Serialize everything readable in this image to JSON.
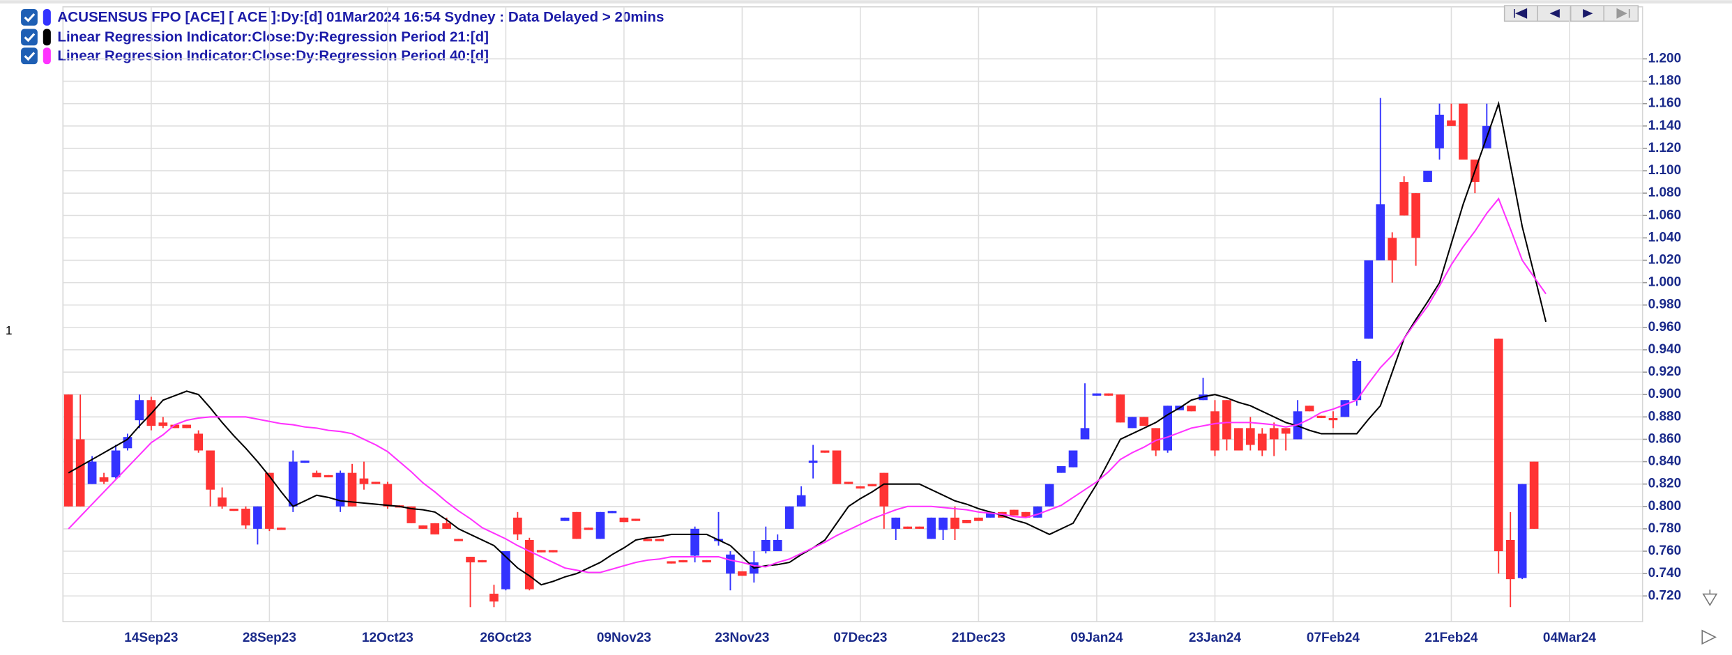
{
  "chart_data": {
    "type": "candlestick",
    "pane_label": "1",
    "ylim": [
      0.697,
      1.2465
    ],
    "yticks": [
      {
        "value": 0.72,
        "label": "0.720"
      },
      {
        "value": 0.74,
        "label": "0.740"
      },
      {
        "value": 0.76,
        "label": "0.760"
      },
      {
        "value": 0.78,
        "label": "0.780"
      },
      {
        "value": 0.8,
        "label": "0.800"
      },
      {
        "value": 0.82,
        "label": "0.820"
      },
      {
        "value": 0.84,
        "label": "0.840"
      },
      {
        "value": 0.86,
        "label": "0.860"
      },
      {
        "value": 0.88,
        "label": "0.880"
      },
      {
        "value": 0.9,
        "label": "0.900"
      },
      {
        "value": 0.92,
        "label": "0.920"
      },
      {
        "value": 0.94,
        "label": "0.940"
      },
      {
        "value": 0.96,
        "label": "0.960"
      },
      {
        "value": 0.98,
        "label": "0.980"
      },
      {
        "value": 1.0,
        "label": "1.000"
      },
      {
        "value": 1.02,
        "label": "1.020"
      },
      {
        "value": 1.04,
        "label": "1.040"
      },
      {
        "value": 1.06,
        "label": "1.060"
      },
      {
        "value": 1.08,
        "label": "1.080"
      },
      {
        "value": 1.1,
        "label": "1.100"
      },
      {
        "value": 1.12,
        "label": "1.120"
      },
      {
        "value": 1.14,
        "label": "1.140"
      },
      {
        "value": 1.16,
        "label": "1.160"
      },
      {
        "value": 1.18,
        "label": "1.180"
      },
      {
        "value": 1.2,
        "label": "1.200"
      }
    ],
    "grid": true,
    "categories": [
      null,
      null,
      null,
      null,
      null,
      null,
      null,
      "14Sep23",
      null,
      null,
      null,
      null,
      null,
      null,
      null,
      null,
      null,
      "28Sep23",
      null,
      null,
      null,
      null,
      null,
      null,
      null,
      null,
      null,
      "12Oct23",
      null,
      null,
      null,
      null,
      null,
      null,
      null,
      null,
      null,
      "26Oct23",
      null,
      null,
      null,
      null,
      null,
      null,
      null,
      null,
      null,
      "09Nov23",
      null,
      null,
      null,
      null,
      null,
      null,
      null,
      null,
      null,
      "23Nov23",
      null,
      null,
      null,
      null,
      null,
      null,
      null,
      null,
      null,
      "07Dec23",
      null,
      null,
      null,
      null,
      null,
      null,
      null,
      null,
      null,
      "21Dec23",
      null,
      null,
      null,
      null,
      null,
      null,
      null,
      null,
      null,
      "09Jan24",
      null,
      null,
      null,
      null,
      null,
      null,
      null,
      null,
      null,
      "23Jan24",
      null,
      null,
      null,
      null,
      null,
      null,
      null,
      null,
      null,
      "07Feb24",
      null,
      null,
      null,
      null,
      null,
      null,
      null,
      null,
      null,
      "21Feb24",
      null,
      null,
      null,
      null,
      null,
      null,
      null,
      null,
      null,
      "04Mar24"
    ],
    "series": [
      {
        "name": "ACUSENSUS FPO [ACE] [ ACE ]:Dy:[d]  01Mar2024 16:54 Sydney : Data Delayed > 20mins",
        "type": "candlestick",
        "up_color": "#3333ff",
        "down_color": "#ff3333",
        "open": [
          0.9,
          0.86,
          0.82,
          0.826,
          0.826,
          0.852,
          0.877,
          0.895,
          0.875,
          0.873,
          0.873,
          0.865,
          0.85,
          0.808,
          0.798,
          0.798,
          0.78,
          0.83,
          0.781,
          0.8,
          0.839,
          0.83,
          0.828,
          0.8,
          0.83,
          0.825,
          0.822,
          0.82,
          0.801,
          0.8,
          0.783,
          0.785,
          0.785,
          0.771,
          0.755,
          0.752,
          0.722,
          0.726,
          0.79,
          0.77,
          0.761,
          0.761,
          0.787,
          0.795,
          0.781,
          0.771,
          0.794,
          0.79,
          0.789,
          0.771,
          0.771,
          0.751,
          0.752,
          0.756,
          0.752,
          0.769,
          0.74,
          0.742,
          0.74,
          0.76,
          0.76,
          0.78,
          0.8,
          0.839,
          0.85,
          0.85,
          0.822,
          0.818,
          0.82,
          0.83,
          0.78,
          0.782,
          0.782,
          0.771,
          0.779,
          0.79,
          0.788,
          0.79,
          0.79,
          0.795,
          0.797,
          0.795,
          0.79,
          0.8,
          0.83,
          0.835,
          0.86,
          0.899,
          0.901,
          0.9,
          0.87,
          0.88,
          0.87,
          0.85,
          0.886,
          0.89,
          0.895,
          0.885,
          0.895,
          0.87,
          0.87,
          0.865,
          0.87,
          0.87,
          0.86,
          0.89,
          0.881,
          0.879,
          0.88,
          0.895,
          0.95,
          1.02,
          1.04,
          1.09,
          1.08,
          1.09,
          1.12,
          1.145,
          1.16,
          1.11,
          1.12,
          0.95,
          0.77,
          0.736,
          0.84,
          null,
          null,
          null
        ],
        "high": [
          0.9,
          0.9,
          0.845,
          0.83,
          0.855,
          0.865,
          0.9,
          0.898,
          0.88,
          0.873,
          0.873,
          0.868,
          0.85,
          0.817,
          0.798,
          0.8,
          0.8,
          0.83,
          0.781,
          0.85,
          0.841,
          0.832,
          0.828,
          0.832,
          0.838,
          0.84,
          0.822,
          0.822,
          0.801,
          0.8,
          0.783,
          0.785,
          0.79,
          0.771,
          0.755,
          0.752,
          0.73,
          0.76,
          0.795,
          0.772,
          0.761,
          0.761,
          0.79,
          0.795,
          0.781,
          0.795,
          0.796,
          0.79,
          0.789,
          0.771,
          0.771,
          0.751,
          0.752,
          0.782,
          0.752,
          0.795,
          0.76,
          0.742,
          0.76,
          0.782,
          0.775,
          0.8,
          0.818,
          0.855,
          0.85,
          0.85,
          0.822,
          0.818,
          0.82,
          0.83,
          0.79,
          0.782,
          0.782,
          0.79,
          0.79,
          0.8,
          0.788,
          0.79,
          0.795,
          0.795,
          0.797,
          0.795,
          0.8,
          0.82,
          0.836,
          0.85,
          0.91,
          0.901,
          0.901,
          0.9,
          0.88,
          0.88,
          0.87,
          0.89,
          0.89,
          0.89,
          0.915,
          0.895,
          0.895,
          0.87,
          0.88,
          0.87,
          0.875,
          0.87,
          0.895,
          0.89,
          0.881,
          0.885,
          0.895,
          0.932,
          1.02,
          1.165,
          1.045,
          1.095,
          1.08,
          1.1,
          1.16,
          1.16,
          1.16,
          1.11,
          1.16,
          0.95,
          0.795,
          0.82,
          0.84,
          null,
          null,
          null
        ],
        "low": [
          0.8,
          0.8,
          0.82,
          0.82,
          0.825,
          0.85,
          0.87,
          0.868,
          0.87,
          0.87,
          0.87,
          0.848,
          0.8,
          0.798,
          0.796,
          0.78,
          0.766,
          0.778,
          0.779,
          0.795,
          0.839,
          0.826,
          0.826,
          0.795,
          0.8,
          0.815,
          0.82,
          0.798,
          0.799,
          0.785,
          0.78,
          0.775,
          0.78,
          0.769,
          0.71,
          0.75,
          0.71,
          0.725,
          0.77,
          0.725,
          0.759,
          0.759,
          0.787,
          0.771,
          0.779,
          0.771,
          0.794,
          0.786,
          0.787,
          0.769,
          0.769,
          0.749,
          0.75,
          0.75,
          0.75,
          0.765,
          0.725,
          0.738,
          0.732,
          0.758,
          0.76,
          0.78,
          0.8,
          0.825,
          0.848,
          0.82,
          0.82,
          0.816,
          0.818,
          0.78,
          0.77,
          0.78,
          0.78,
          0.771,
          0.77,
          0.77,
          0.785,
          0.787,
          0.79,
          0.79,
          0.792,
          0.79,
          0.79,
          0.8,
          0.83,
          0.835,
          0.86,
          0.899,
          0.899,
          0.875,
          0.87,
          0.872,
          0.845,
          0.848,
          0.886,
          0.885,
          0.895,
          0.845,
          0.85,
          0.85,
          0.85,
          0.845,
          0.845,
          0.85,
          0.86,
          0.885,
          0.879,
          0.87,
          0.88,
          0.89,
          0.95,
          1.02,
          1.0,
          1.06,
          1.015,
          1.09,
          1.11,
          1.14,
          1.11,
          1.08,
          1.12,
          0.74,
          0.71,
          0.735,
          0.78,
          null,
          null,
          null
        ],
        "close": [
          0.8,
          0.8,
          0.84,
          0.822,
          0.85,
          0.862,
          0.895,
          0.872,
          0.872,
          0.87,
          0.87,
          0.85,
          0.815,
          0.8,
          0.796,
          0.783,
          0.8,
          0.78,
          0.779,
          0.84,
          0.841,
          0.826,
          0.826,
          0.83,
          0.8,
          0.82,
          0.82,
          0.8,
          0.799,
          0.785,
          0.78,
          0.775,
          0.78,
          0.769,
          0.75,
          0.75,
          0.715,
          0.76,
          0.775,
          0.726,
          0.759,
          0.759,
          0.79,
          0.771,
          0.779,
          0.795,
          0.796,
          0.786,
          0.787,
          0.769,
          0.769,
          0.749,
          0.75,
          0.78,
          0.75,
          0.771,
          0.757,
          0.738,
          0.75,
          0.77,
          0.77,
          0.8,
          0.81,
          0.841,
          0.848,
          0.82,
          0.82,
          0.816,
          0.818,
          0.8,
          0.79,
          0.78,
          0.78,
          0.79,
          0.79,
          0.78,
          0.785,
          0.787,
          0.795,
          0.79,
          0.792,
          0.79,
          0.8,
          0.82,
          0.836,
          0.85,
          0.87,
          0.901,
          0.899,
          0.875,
          0.88,
          0.872,
          0.85,
          0.89,
          0.89,
          0.885,
          0.9,
          0.85,
          0.86,
          0.85,
          0.855,
          0.85,
          0.86,
          0.865,
          0.885,
          0.885,
          0.879,
          0.877,
          0.895,
          0.93,
          1.02,
          1.07,
          1.02,
          1.06,
          1.04,
          1.1,
          1.15,
          1.14,
          1.11,
          1.09,
          1.14,
          0.76,
          0.735,
          0.82,
          0.78,
          null,
          null,
          null
        ]
      },
      {
        "name": "Linear Regression Indicator:Close:Dy:Regression Period 21:[d]",
        "type": "line",
        "color": "#000000",
        "values": [
          0.83,
          0.836,
          0.842,
          0.848,
          0.854,
          0.86,
          0.872,
          0.883,
          0.895,
          0.899,
          0.903,
          0.9,
          0.888,
          0.875,
          0.863,
          0.852,
          0.84,
          0.827,
          0.813,
          0.8,
          0.805,
          0.81,
          0.808,
          0.805,
          0.804,
          0.803,
          0.802,
          0.801,
          0.8,
          0.798,
          0.797,
          0.795,
          0.788,
          0.78,
          0.775,
          0.77,
          0.765,
          0.755,
          0.745,
          0.738,
          0.73,
          0.733,
          0.737,
          0.74,
          0.745,
          0.75,
          0.757,
          0.763,
          0.77,
          0.772,
          0.773,
          0.775,
          0.775,
          0.775,
          0.775,
          0.77,
          0.765,
          0.755,
          0.745,
          0.747,
          0.748,
          0.75,
          0.757,
          0.763,
          0.77,
          0.785,
          0.8,
          0.807,
          0.813,
          0.82,
          0.82,
          0.82,
          0.82,
          0.815,
          0.81,
          0.805,
          0.802,
          0.798,
          0.795,
          0.792,
          0.788,
          0.785,
          0.78,
          0.775,
          0.78,
          0.785,
          0.803,
          0.82,
          0.84,
          0.86,
          0.865,
          0.87,
          0.875,
          0.882,
          0.888,
          0.895,
          0.898,
          0.9,
          0.897,
          0.893,
          0.89,
          0.885,
          0.88,
          0.875,
          0.872,
          0.868,
          0.865,
          0.865,
          0.865,
          0.865,
          0.878,
          0.89,
          0.92,
          0.95,
          0.967,
          0.983,
          1.0,
          1.035,
          1.07,
          1.1,
          1.13,
          1.16,
          1.105,
          1.05,
          1.008,
          0.965,
          null,
          null
        ]
      },
      {
        "name": "Linear Regression Indicator:Close:Dy:Regression Period 40:[d]",
        "type": "line",
        "color": "#ff33ff",
        "values": [
          0.78,
          0.791,
          0.802,
          0.813,
          0.824,
          0.835,
          0.846,
          0.857,
          0.864,
          0.873,
          0.877,
          0.879,
          0.88,
          0.88,
          0.88,
          0.88,
          0.878,
          0.876,
          0.874,
          0.873,
          0.871,
          0.87,
          0.868,
          0.867,
          0.865,
          0.86,
          0.855,
          0.849,
          0.84,
          0.831,
          0.821,
          0.813,
          0.804,
          0.796,
          0.789,
          0.781,
          0.776,
          0.771,
          0.765,
          0.76,
          0.755,
          0.75,
          0.745,
          0.743,
          0.741,
          0.741,
          0.744,
          0.747,
          0.75,
          0.752,
          0.753,
          0.755,
          0.755,
          0.755,
          0.755,
          0.755,
          0.752,
          0.75,
          0.747,
          0.746,
          0.75,
          0.753,
          0.758,
          0.763,
          0.768,
          0.774,
          0.779,
          0.784,
          0.789,
          0.793,
          0.797,
          0.8,
          0.8,
          0.8,
          0.799,
          0.798,
          0.797,
          0.795,
          0.794,
          0.793,
          0.791,
          0.79,
          0.793,
          0.797,
          0.801,
          0.808,
          0.815,
          0.822,
          0.831,
          0.842,
          0.848,
          0.853,
          0.859,
          0.862,
          0.866,
          0.87,
          0.872,
          0.874,
          0.875,
          0.875,
          0.875,
          0.874,
          0.873,
          0.871,
          0.873,
          0.878,
          0.884,
          0.887,
          0.891,
          0.895,
          0.91,
          0.924,
          0.935,
          0.95,
          0.965,
          0.979,
          0.997,
          1.016,
          1.032,
          1.046,
          1.062,
          1.075,
          1.048,
          1.02,
          1.005,
          0.99,
          null,
          null
        ]
      }
    ]
  }
}
